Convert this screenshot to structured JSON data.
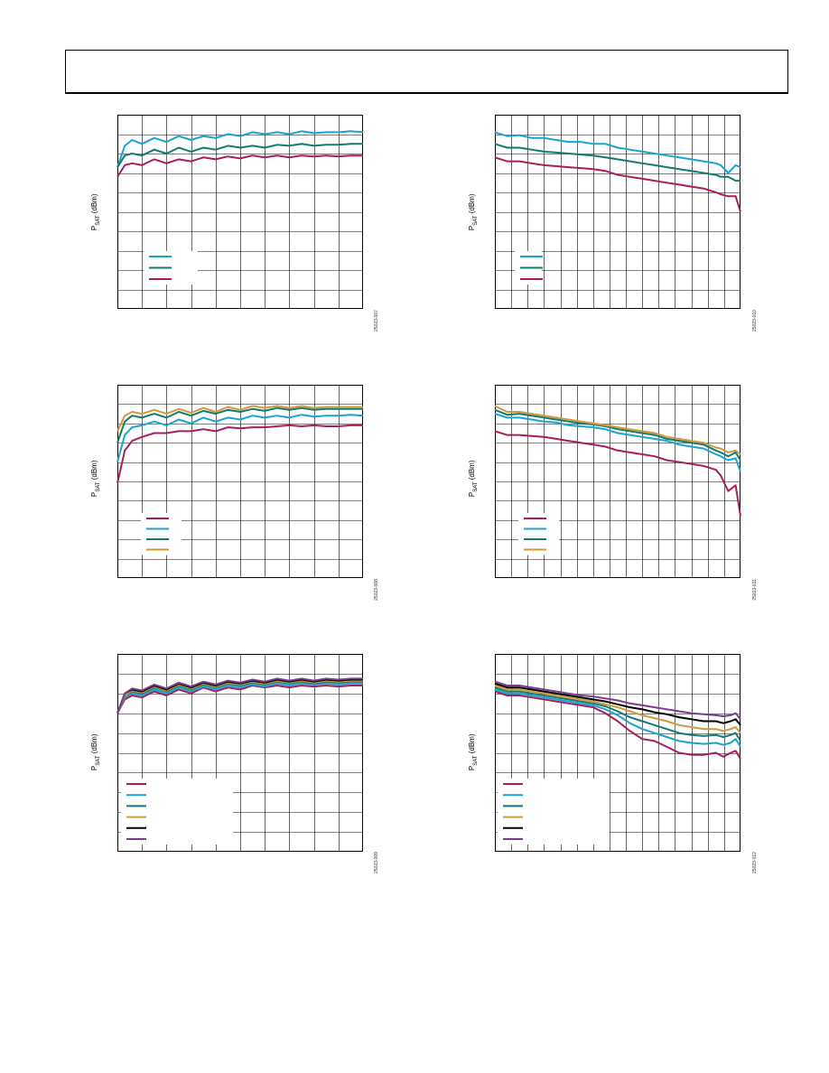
{
  "header": {},
  "colors": {
    "c1": "#a71d5d",
    "c2": "#1aa3cf",
    "c3": "#127a6e",
    "c4": "#d09a3a",
    "c5": "#000000",
    "c6": "#7b3b8c"
  },
  "charts": [
    {
      "id": "p1",
      "ylabel_main": "P",
      "ylabel_sub": "SAT",
      "ylabel_unit": " (dBm)",
      "fig_id": "25023-007"
    },
    {
      "id": "p2",
      "ylabel_main": "P",
      "ylabel_sub": "SAT",
      "ylabel_unit": " (dBm)",
      "fig_id": "25023-010"
    },
    {
      "id": "p3",
      "ylabel_main": "P",
      "ylabel_sub": "SAT",
      "ylabel_unit": " (dBm)",
      "fig_id": "25023-008"
    },
    {
      "id": "p4",
      "ylabel_main": "P",
      "ylabel_sub": "SAT",
      "ylabel_unit": " (dBm)",
      "fig_id": "25023-011"
    },
    {
      "id": "p5",
      "ylabel_main": "P",
      "ylabel_sub": "SAT",
      "ylabel_unit": " (dBm)",
      "fig_id": "25023-009"
    },
    {
      "id": "p6",
      "ylabel_main": "P",
      "ylabel_sub": "SAT",
      "ylabel_unit": " (dBm)",
      "fig_id": "25023-012"
    }
  ],
  "chart_data": [
    {
      "type": "line",
      "title": "",
      "xlabel": "",
      "ylabel": "PSAT (dBm)",
      "grid": true,
      "xlim": [
        0,
        10
      ],
      "ylim": [
        0,
        10
      ],
      "legend": "bottom-left",
      "x": [
        0,
        0.3,
        0.6,
        1,
        1.5,
        2,
        2.5,
        3,
        3.5,
        4,
        4.5,
        5,
        5.5,
        6,
        6.5,
        7,
        7.5,
        8,
        8.5,
        9,
        9.5,
        10
      ],
      "series": [
        {
          "color": "c2",
          "values": [
            7.3,
            8.4,
            8.7,
            8.5,
            8.8,
            8.6,
            8.9,
            8.7,
            8.9,
            8.8,
            9.0,
            8.9,
            9.1,
            9.0,
            9.1,
            9.0,
            9.15,
            9.05,
            9.1,
            9.1,
            9.15,
            9.1
          ]
        },
        {
          "color": "c3",
          "values": [
            7.3,
            7.9,
            8.0,
            7.9,
            8.2,
            8.0,
            8.3,
            8.1,
            8.3,
            8.2,
            8.4,
            8.3,
            8.4,
            8.3,
            8.45,
            8.4,
            8.5,
            8.4,
            8.45,
            8.45,
            8.5,
            8.5
          ]
        },
        {
          "color": "c1",
          "values": [
            6.8,
            7.4,
            7.5,
            7.4,
            7.7,
            7.5,
            7.7,
            7.6,
            7.8,
            7.7,
            7.85,
            7.75,
            7.9,
            7.8,
            7.9,
            7.8,
            7.9,
            7.85,
            7.9,
            7.85,
            7.9,
            7.9
          ]
        }
      ]
    },
    {
      "type": "line",
      "title": "",
      "xlabel": "",
      "ylabel": "PSAT (dBm)",
      "grid": true,
      "xlim": [
        0,
        10
      ],
      "ylim": [
        0,
        10
      ],
      "legend": "bottom-left",
      "x": [
        0,
        0.5,
        1,
        1.5,
        2,
        2.5,
        3,
        3.5,
        4,
        4.5,
        5,
        5.5,
        6,
        6.5,
        7,
        7.5,
        8,
        8.5,
        9,
        9.2,
        9.5,
        9.8,
        10
      ],
      "series": [
        {
          "color": "c2",
          "values": [
            9.1,
            8.9,
            8.95,
            8.8,
            8.8,
            8.7,
            8.6,
            8.6,
            8.5,
            8.5,
            8.3,
            8.2,
            8.1,
            8.0,
            7.9,
            7.8,
            7.7,
            7.6,
            7.5,
            7.4,
            7.0,
            7.4,
            7.3
          ]
        },
        {
          "color": "c3",
          "values": [
            8.5,
            8.3,
            8.3,
            8.2,
            8.1,
            8.05,
            8.0,
            7.95,
            7.9,
            7.8,
            7.7,
            7.6,
            7.5,
            7.4,
            7.3,
            7.2,
            7.1,
            7.0,
            6.9,
            6.8,
            6.8,
            6.6,
            6.6
          ]
        },
        {
          "color": "c1",
          "values": [
            7.8,
            7.6,
            7.6,
            7.5,
            7.4,
            7.35,
            7.3,
            7.25,
            7.2,
            7.1,
            6.9,
            6.8,
            6.7,
            6.6,
            6.5,
            6.4,
            6.3,
            6.2,
            6.0,
            5.9,
            5.8,
            5.8,
            5.0
          ]
        }
      ]
    },
    {
      "type": "line",
      "title": "",
      "xlabel": "",
      "ylabel": "PSAT (dBm)",
      "grid": true,
      "xlim": [
        0,
        10
      ],
      "ylim": [
        0,
        10
      ],
      "legend": "bottom-left",
      "x": [
        0,
        0.3,
        0.6,
        1,
        1.5,
        2,
        2.5,
        3,
        3.5,
        4,
        4.5,
        5,
        5.5,
        6,
        6.5,
        7,
        7.5,
        8,
        8.5,
        9,
        9.5,
        10
      ],
      "series": [
        {
          "color": "c1",
          "values": [
            4.9,
            6.6,
            7.1,
            7.3,
            7.5,
            7.5,
            7.6,
            7.6,
            7.7,
            7.6,
            7.8,
            7.75,
            7.8,
            7.8,
            7.85,
            7.9,
            7.85,
            7.9,
            7.85,
            7.85,
            7.9,
            7.9
          ]
        },
        {
          "color": "c2",
          "values": [
            6.0,
            7.4,
            7.8,
            7.9,
            8.1,
            7.9,
            8.2,
            8.0,
            8.3,
            8.1,
            8.3,
            8.2,
            8.4,
            8.3,
            8.4,
            8.3,
            8.45,
            8.35,
            8.4,
            8.4,
            8.45,
            8.4
          ]
        },
        {
          "color": "c3",
          "values": [
            7.0,
            8.1,
            8.4,
            8.3,
            8.5,
            8.3,
            8.6,
            8.4,
            8.65,
            8.5,
            8.7,
            8.6,
            8.75,
            8.65,
            8.8,
            8.7,
            8.8,
            8.7,
            8.75,
            8.75,
            8.75,
            8.75
          ]
        },
        {
          "color": "c4",
          "values": [
            7.6,
            8.4,
            8.6,
            8.5,
            8.7,
            8.5,
            8.75,
            8.55,
            8.8,
            8.6,
            8.85,
            8.7,
            8.9,
            8.8,
            8.9,
            8.8,
            8.9,
            8.8,
            8.85,
            8.85,
            8.85,
            8.85
          ]
        }
      ]
    },
    {
      "type": "line",
      "title": "",
      "xlabel": "",
      "ylabel": "PSAT (dBm)",
      "grid": true,
      "xlim": [
        0,
        10
      ],
      "ylim": [
        0,
        10
      ],
      "legend": "bottom-left",
      "x": [
        0,
        0.5,
        1,
        1.5,
        2,
        2.5,
        3,
        3.5,
        4,
        4.5,
        5,
        5.5,
        6,
        6.5,
        7,
        7.5,
        8,
        8.5,
        9,
        9.2,
        9.5,
        9.8,
        10
      ],
      "series": [
        {
          "color": "c1",
          "values": [
            7.6,
            7.4,
            7.4,
            7.35,
            7.3,
            7.2,
            7.1,
            7.0,
            6.9,
            6.8,
            6.6,
            6.5,
            6.4,
            6.3,
            6.1,
            6.0,
            5.9,
            5.8,
            5.6,
            5.3,
            4.5,
            4.8,
            3.2
          ]
        },
        {
          "color": "c2",
          "values": [
            8.5,
            8.3,
            8.3,
            8.2,
            8.1,
            8.05,
            7.9,
            7.85,
            7.8,
            7.7,
            7.5,
            7.4,
            7.3,
            7.2,
            7.1,
            6.9,
            6.8,
            6.7,
            6.4,
            6.3,
            6.1,
            6.2,
            5.5
          ]
        },
        {
          "color": "c3",
          "values": [
            8.7,
            8.45,
            8.5,
            8.4,
            8.3,
            8.2,
            8.1,
            8.0,
            7.95,
            7.85,
            7.7,
            7.6,
            7.5,
            7.4,
            7.2,
            7.1,
            7.0,
            6.9,
            6.6,
            6.5,
            6.3,
            6.5,
            6.1
          ]
        },
        {
          "color": "c4",
          "values": [
            8.9,
            8.6,
            8.6,
            8.5,
            8.4,
            8.3,
            8.2,
            8.1,
            8.0,
            7.9,
            7.8,
            7.7,
            7.6,
            7.5,
            7.3,
            7.2,
            7.1,
            7.0,
            6.75,
            6.7,
            6.5,
            6.6,
            6.4
          ]
        }
      ]
    },
    {
      "type": "line",
      "title": "",
      "xlabel": "",
      "ylabel": "PSAT (dBm)",
      "grid": true,
      "xlim": [
        0,
        10
      ],
      "ylim": [
        0,
        10
      ],
      "legend": "bottom-left",
      "x": [
        0,
        0.3,
        0.6,
        1,
        1.5,
        2,
        2.5,
        3,
        3.5,
        4,
        4.5,
        5,
        5.5,
        6,
        6.5,
        7,
        7.5,
        8,
        8.5,
        9,
        9.5,
        10
      ],
      "series": [
        {
          "color": "c1",
          "values": [
            7.0,
            7.7,
            7.9,
            7.8,
            8.1,
            7.9,
            8.2,
            8.0,
            8.3,
            8.1,
            8.3,
            8.2,
            8.4,
            8.3,
            8.4,
            8.3,
            8.4,
            8.35,
            8.4,
            8.35,
            8.4,
            8.4
          ]
        },
        {
          "color": "c2",
          "values": [
            7.0,
            7.8,
            8.0,
            7.9,
            8.2,
            8.0,
            8.3,
            8.1,
            8.35,
            8.2,
            8.4,
            8.3,
            8.45,
            8.35,
            8.5,
            8.4,
            8.5,
            8.45,
            8.5,
            8.45,
            8.5,
            8.5
          ]
        },
        {
          "color": "c3",
          "values": [
            7.0,
            7.9,
            8.1,
            8.0,
            8.3,
            8.1,
            8.4,
            8.2,
            8.45,
            8.3,
            8.5,
            8.4,
            8.55,
            8.45,
            8.6,
            8.5,
            8.6,
            8.5,
            8.6,
            8.55,
            8.6,
            8.6
          ]
        },
        {
          "color": "c4",
          "values": [
            7.0,
            7.9,
            8.15,
            8.05,
            8.35,
            8.15,
            8.45,
            8.25,
            8.5,
            8.35,
            8.55,
            8.45,
            8.6,
            8.5,
            8.65,
            8.55,
            8.65,
            8.55,
            8.65,
            8.6,
            8.65,
            8.65
          ]
        },
        {
          "color": "c5",
          "values": [
            7.0,
            8.0,
            8.2,
            8.1,
            8.4,
            8.2,
            8.5,
            8.3,
            8.55,
            8.4,
            8.6,
            8.5,
            8.65,
            8.55,
            8.7,
            8.6,
            8.7,
            8.6,
            8.7,
            8.65,
            8.7,
            8.7
          ]
        },
        {
          "color": "c6",
          "values": [
            7.0,
            8.0,
            8.25,
            8.15,
            8.45,
            8.25,
            8.55,
            8.35,
            8.6,
            8.45,
            8.65,
            8.55,
            8.7,
            8.6,
            8.75,
            8.65,
            8.75,
            8.65,
            8.75,
            8.7,
            8.75,
            8.75
          ]
        }
      ]
    },
    {
      "type": "line",
      "title": "",
      "xlabel": "",
      "ylabel": "PSAT (dBm)",
      "grid": true,
      "xlim": [
        0,
        10
      ],
      "ylim": [
        0,
        10
      ],
      "legend": "bottom-left",
      "x": [
        0,
        0.5,
        1,
        1.5,
        2,
        2.5,
        3,
        3.5,
        4,
        4.5,
        5,
        5.5,
        6,
        6.5,
        7,
        7.5,
        8,
        8.5,
        9,
        9.3,
        9.6,
        9.8,
        10
      ],
      "series": [
        {
          "color": "c1",
          "values": [
            8.1,
            7.9,
            7.9,
            7.8,
            7.7,
            7.6,
            7.5,
            7.4,
            7.3,
            7.0,
            6.6,
            6.1,
            5.7,
            5.6,
            5.3,
            5.0,
            4.9,
            4.9,
            5.0,
            4.8,
            5.0,
            5.1,
            4.7
          ]
        },
        {
          "color": "c2",
          "values": [
            8.2,
            8.0,
            8.0,
            7.9,
            7.8,
            7.7,
            7.6,
            7.5,
            7.4,
            7.2,
            6.9,
            6.5,
            6.2,
            6.0,
            5.8,
            5.6,
            5.5,
            5.45,
            5.5,
            5.4,
            5.5,
            5.7,
            5.3
          ]
        },
        {
          "color": "c3",
          "values": [
            8.3,
            8.1,
            8.1,
            8.0,
            7.9,
            7.8,
            7.7,
            7.6,
            7.5,
            7.35,
            7.1,
            6.8,
            6.6,
            6.4,
            6.2,
            6.0,
            5.9,
            5.85,
            5.9,
            5.8,
            5.9,
            6.0,
            5.6
          ]
        },
        {
          "color": "c4",
          "values": [
            8.4,
            8.2,
            8.2,
            8.1,
            8.0,
            7.9,
            7.8,
            7.7,
            7.6,
            7.45,
            7.3,
            7.1,
            6.9,
            6.75,
            6.6,
            6.4,
            6.3,
            6.2,
            6.2,
            6.1,
            6.2,
            6.3,
            6.0
          ]
        },
        {
          "color": "c5",
          "values": [
            8.5,
            8.3,
            8.3,
            8.2,
            8.1,
            8.0,
            7.9,
            7.8,
            7.7,
            7.6,
            7.45,
            7.3,
            7.2,
            7.05,
            6.95,
            6.8,
            6.7,
            6.6,
            6.6,
            6.5,
            6.6,
            6.7,
            6.4
          ]
        },
        {
          "color": "c6",
          "values": [
            8.6,
            8.4,
            8.4,
            8.3,
            8.2,
            8.1,
            8.0,
            7.9,
            7.85,
            7.75,
            7.65,
            7.5,
            7.4,
            7.3,
            7.2,
            7.1,
            7.0,
            6.95,
            6.9,
            6.85,
            6.9,
            7.0,
            6.7
          ]
        }
      ]
    }
  ]
}
